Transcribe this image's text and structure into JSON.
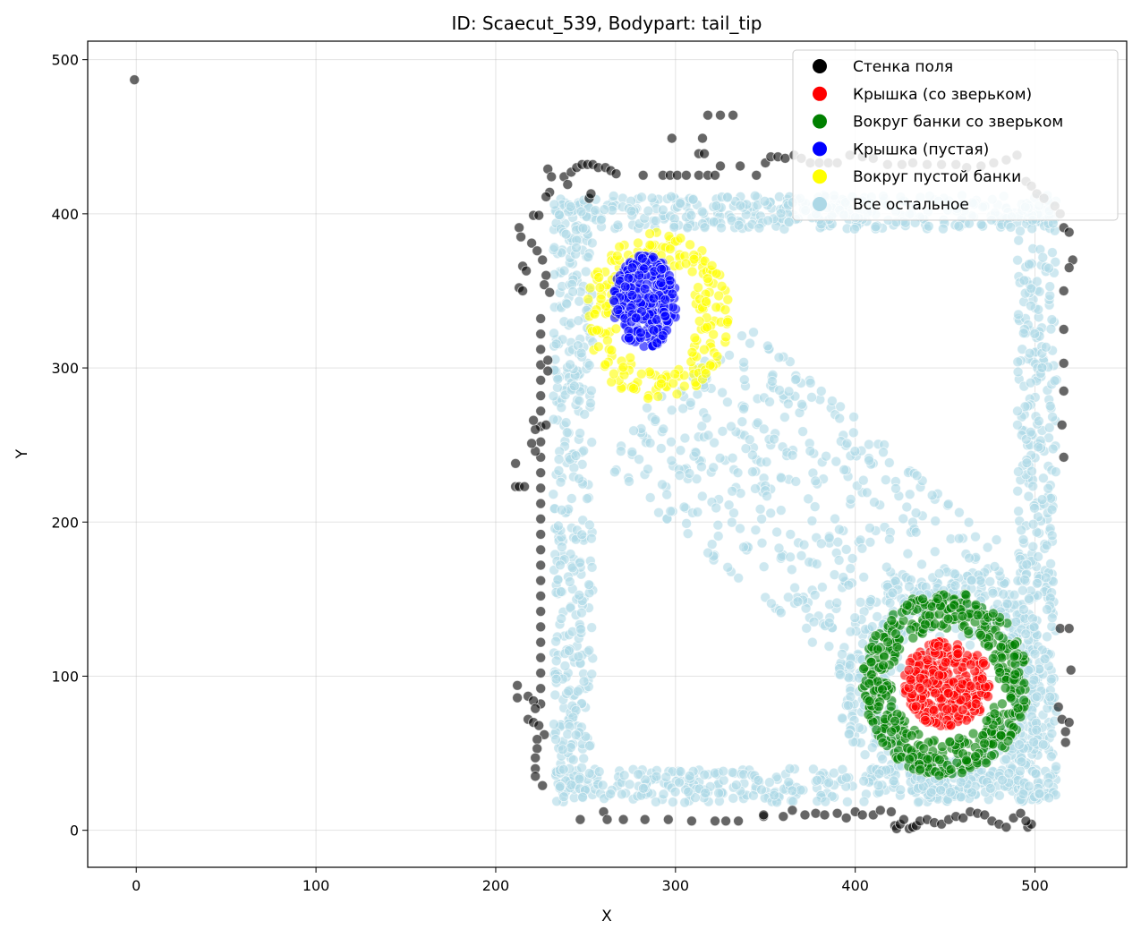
{
  "chart_data": {
    "type": "scatter",
    "title": "ID: Scaecut_539, Bodypart: tail_tip",
    "xlabel": "X",
    "ylabel": "Y",
    "xlim": [
      -27,
      551
    ],
    "ylim": [
      -24,
      512
    ],
    "xticks": [
      0,
      100,
      200,
      300,
      400,
      500
    ],
    "yticks": [
      0,
      100,
      200,
      300,
      400,
      500
    ],
    "grid": true,
    "legend_position": "top-right",
    "series": [
      {
        "name": "Стенка поля",
        "color": "#000000",
        "points": [
          [
            -1,
            487
          ],
          [
            213,
            391
          ],
          [
            214,
            385
          ],
          [
            215,
            366
          ],
          [
            217,
            363
          ],
          [
            213,
            352
          ],
          [
            215,
            350
          ],
          [
            221,
            399
          ],
          [
            224,
            399
          ],
          [
            220,
            381
          ],
          [
            223,
            376
          ],
          [
            226,
            370
          ],
          [
            228,
            360
          ],
          [
            227,
            354
          ],
          [
            230,
            349
          ],
          [
            225,
            332
          ],
          [
            225,
            322
          ],
          [
            225,
            312
          ],
          [
            225,
            302
          ],
          [
            225,
            292
          ],
          [
            225,
            282
          ],
          [
            225,
            272
          ],
          [
            225,
            262
          ],
          [
            225,
            252
          ],
          [
            225,
            242
          ],
          [
            225,
            232
          ],
          [
            225,
            222
          ],
          [
            225,
            212
          ],
          [
            225,
            202
          ],
          [
            225,
            192
          ],
          [
            225,
            182
          ],
          [
            225,
            172
          ],
          [
            225,
            162
          ],
          [
            225,
            152
          ],
          [
            225,
            142
          ],
          [
            225,
            132
          ],
          [
            225,
            122
          ],
          [
            225,
            112
          ],
          [
            225,
            102
          ],
          [
            225,
            92
          ],
          [
            225,
            82
          ],
          [
            229,
            305
          ],
          [
            229,
            298
          ],
          [
            228,
            263
          ],
          [
            222,
            260
          ],
          [
            221,
            266
          ],
          [
            222,
            246
          ],
          [
            220,
            251
          ],
          [
            211,
            238
          ],
          [
            211,
            223
          ],
          [
            213,
            223
          ],
          [
            216,
            223
          ],
          [
            212,
            94
          ],
          [
            212,
            86
          ],
          [
            218,
            87
          ],
          [
            221,
            84
          ],
          [
            222,
            79
          ],
          [
            218,
            72
          ],
          [
            221,
            70
          ],
          [
            224,
            68
          ],
          [
            227,
            62
          ],
          [
            223,
            59
          ],
          [
            223,
            53
          ],
          [
            222,
            47
          ],
          [
            222,
            40
          ],
          [
            222,
            35
          ],
          [
            226,
            29
          ],
          [
            229,
            429
          ],
          [
            231,
            424
          ],
          [
            230,
            414
          ],
          [
            228,
            411
          ],
          [
            238,
            424
          ],
          [
            240,
            419
          ],
          [
            242,
            427
          ],
          [
            245,
            430
          ],
          [
            248,
            432
          ],
          [
            251,
            432
          ],
          [
            254,
            432
          ],
          [
            257,
            430
          ],
          [
            261,
            430
          ],
          [
            264,
            428
          ],
          [
            267,
            426
          ],
          [
            252,
            410
          ],
          [
            253,
            413
          ],
          [
            298,
            449
          ],
          [
            315,
            449
          ],
          [
            313,
            439
          ],
          [
            316,
            439
          ],
          [
            282,
            425
          ],
          [
            293,
            425
          ],
          [
            297,
            425
          ],
          [
            301,
            425
          ],
          [
            306,
            425
          ],
          [
            313,
            425
          ],
          [
            318,
            425
          ],
          [
            322,
            425
          ],
          [
            325,
            431
          ],
          [
            336,
            431
          ],
          [
            318,
            464
          ],
          [
            325,
            464
          ],
          [
            332,
            464
          ],
          [
            345,
            425
          ],
          [
            350,
            433
          ],
          [
            353,
            437
          ],
          [
            357,
            437
          ],
          [
            361,
            436
          ],
          [
            366,
            438
          ],
          [
            370,
            436
          ],
          [
            375,
            433
          ],
          [
            380,
            433
          ],
          [
            385,
            433
          ],
          [
            390,
            433
          ],
          [
            397,
            438
          ],
          [
            404,
            437
          ],
          [
            410,
            436
          ],
          [
            418,
            432
          ],
          [
            426,
            432
          ],
          [
            432,
            433
          ],
          [
            440,
            432
          ],
          [
            448,
            432
          ],
          [
            456,
            432
          ],
          [
            462,
            430
          ],
          [
            470,
            431
          ],
          [
            477,
            433
          ],
          [
            484,
            435
          ],
          [
            490,
            438
          ],
          [
            495,
            421
          ],
          [
            498,
            418
          ],
          [
            501,
            413
          ],
          [
            505,
            410
          ],
          [
            511,
            405
          ],
          [
            514,
            400
          ],
          [
            516,
            391
          ],
          [
            519,
            388
          ],
          [
            521,
            370
          ],
          [
            519,
            365
          ],
          [
            516,
            350
          ],
          [
            516,
            325
          ],
          [
            516,
            303
          ],
          [
            516,
            285
          ],
          [
            515,
            263
          ],
          [
            516,
            242
          ],
          [
            514,
            131
          ],
          [
            519,
            131
          ],
          [
            520,
            104
          ],
          [
            513,
            80
          ],
          [
            515,
            72
          ],
          [
            519,
            70
          ],
          [
            517,
            64
          ],
          [
            517,
            57
          ],
          [
            260,
            12
          ],
          [
            247,
            7
          ],
          [
            262,
            7
          ],
          [
            271,
            7
          ],
          [
            283,
            7
          ],
          [
            296,
            7
          ],
          [
            309,
            6
          ],
          [
            322,
            6
          ],
          [
            328,
            6
          ],
          [
            335,
            6
          ],
          [
            349,
            9
          ],
          [
            349,
            10
          ],
          [
            360,
            9
          ],
          [
            365,
            13
          ],
          [
            372,
            10
          ],
          [
            378,
            11
          ],
          [
            383,
            10
          ],
          [
            390,
            11
          ],
          [
            395,
            8
          ],
          [
            400,
            12
          ],
          [
            404,
            10
          ],
          [
            410,
            10
          ],
          [
            414,
            13
          ],
          [
            420,
            12
          ],
          [
            422,
            3
          ],
          [
            423,
            1
          ],
          [
            425,
            4
          ],
          [
            427,
            7
          ],
          [
            430,
            1
          ],
          [
            432,
            2
          ],
          [
            434,
            3
          ],
          [
            436,
            6
          ],
          [
            440,
            7
          ],
          [
            444,
            5
          ],
          [
            448,
            4
          ],
          [
            452,
            7
          ],
          [
            456,
            9
          ],
          [
            460,
            8
          ],
          [
            464,
            12
          ],
          [
            468,
            11
          ],
          [
            472,
            10
          ],
          [
            476,
            6
          ],
          [
            480,
            4
          ],
          [
            484,
            2
          ],
          [
            488,
            8
          ],
          [
            492,
            11
          ],
          [
            496,
            2
          ],
          [
            498,
            4
          ],
          [
            495,
            6
          ]
        ]
      },
      {
        "name": "Крышка (со зверьком)",
        "color": "#ff0000",
        "generator": {
          "shape": "ring",
          "cx": 451,
          "cy": 95,
          "rx_outer": 24,
          "ry_outer": 28,
          "rx_inner": 0,
          "ry_inner": 0,
          "count": 320,
          "seed": 11
        }
      },
      {
        "name": "Вокруг банки со зверьком",
        "color": "#008000",
        "generator": {
          "shape": "ring",
          "cx": 450,
          "cy": 95,
          "rx_outer": 46,
          "ry_outer": 60,
          "rx_inner": 30,
          "ry_inner": 36,
          "count": 520,
          "seed": 23
        }
      },
      {
        "name": "Крышка (пустая)",
        "color": "#0000ff",
        "generator": {
          "shape": "ring",
          "cx": 283,
          "cy": 343,
          "rx_outer": 18,
          "ry_outer": 30,
          "rx_inner": 0,
          "ry_inner": 0,
          "count": 260,
          "seed": 37
        }
      },
      {
        "name": "Вокруг пустой банки",
        "color": "#ffff00",
        "generator": {
          "shape": "ring",
          "cx": 290,
          "cy": 333,
          "rx_outer": 40,
          "ry_outer": 55,
          "rx_inner": 22,
          "ry_inner": 36,
          "count": 220,
          "seed": 41
        }
      },
      {
        "name": "Все остальное",
        "color": "#add8e6",
        "generator": {
          "shape": "frame",
          "x0": 232,
          "x1": 512,
          "y0": 18,
          "y1": 412,
          "band": 22,
          "count": 2400,
          "seed": 53
        }
      }
    ]
  }
}
